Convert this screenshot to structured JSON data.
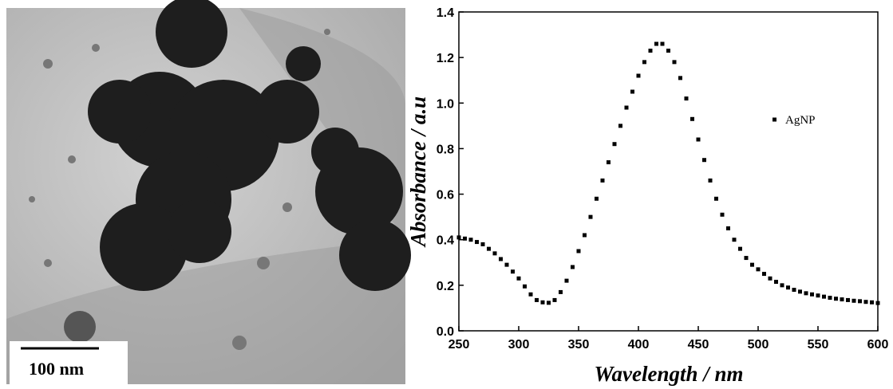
{
  "image": {
    "scale_bar_label": "100 nm"
  },
  "chart_data": {
    "type": "scatter",
    "x_label": "Wavelength / nm",
    "y_label": "Absorbance / a.u",
    "x": [
      250,
      255,
      260,
      265,
      270,
      275,
      280,
      285,
      290,
      295,
      300,
      305,
      310,
      315,
      320,
      325,
      330,
      335,
      340,
      345,
      350,
      355,
      360,
      365,
      370,
      375,
      380,
      385,
      390,
      395,
      400,
      405,
      410,
      415,
      420,
      425,
      430,
      435,
      440,
      445,
      450,
      455,
      460,
      465,
      470,
      475,
      480,
      485,
      490,
      495,
      500,
      505,
      510,
      515,
      520,
      525,
      530,
      535,
      540,
      545,
      550,
      555,
      560,
      565,
      570,
      575,
      580,
      585,
      590,
      595,
      600
    ],
    "series": [
      {
        "name": "AgNP",
        "color": "#000000",
        "values": [
          0.41,
          0.405,
          0.4,
          0.39,
          0.38,
          0.36,
          0.34,
          0.315,
          0.29,
          0.26,
          0.23,
          0.195,
          0.16,
          0.135,
          0.125,
          0.123,
          0.135,
          0.17,
          0.22,
          0.28,
          0.35,
          0.42,
          0.5,
          0.58,
          0.66,
          0.74,
          0.82,
          0.9,
          0.98,
          1.05,
          1.12,
          1.18,
          1.23,
          1.26,
          1.26,
          1.23,
          1.18,
          1.11,
          1.02,
          0.93,
          0.84,
          0.75,
          0.66,
          0.58,
          0.51,
          0.45,
          0.4,
          0.36,
          0.32,
          0.29,
          0.27,
          0.25,
          0.23,
          0.215,
          0.2,
          0.19,
          0.18,
          0.172,
          0.165,
          0.16,
          0.155,
          0.15,
          0.145,
          0.141,
          0.138,
          0.135,
          0.132,
          0.13,
          0.127,
          0.125,
          0.122
        ]
      }
    ],
    "xlim": [
      250,
      600
    ],
    "xticks": [
      250,
      300,
      350,
      400,
      450,
      500,
      550,
      600
    ],
    "ylim": [
      0,
      1.4
    ],
    "yticks": [
      {
        "value": 0,
        "label": "0.0"
      },
      {
        "value": 0.2,
        "label": "0.2"
      },
      {
        "value": 0.4,
        "label": "0.4"
      },
      {
        "value": 0.6,
        "label": "0.6"
      },
      {
        "value": 0.8,
        "label": "0.8"
      },
      {
        "value": 1,
        "label": "1.0"
      },
      {
        "value": 1.2,
        "label": "1.2"
      },
      {
        "value": 1.4,
        "label": "1.4"
      }
    ],
    "legend": "upper right"
  }
}
